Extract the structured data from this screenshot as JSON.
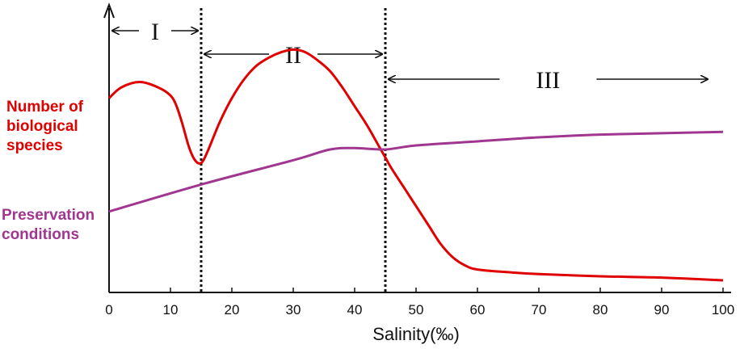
{
  "chart_data": {
    "type": "line",
    "xlabel": "Salinity(‰)",
    "ylabel": "",
    "xlim": [
      0,
      100
    ],
    "x_ticks": [
      "0",
      "10",
      "20",
      "30",
      "40",
      "50",
      "60",
      "70",
      "80",
      "90",
      "100"
    ],
    "series": [
      {
        "name": "Number of biological species",
        "label_lines": [
          "Number of",
          "biological",
          "species"
        ],
        "color": "#e00000",
        "points": [
          [
            0,
            0.72
          ],
          [
            2,
            0.76
          ],
          [
            5,
            0.78
          ],
          [
            8,
            0.76
          ],
          [
            10,
            0.73
          ],
          [
            11,
            0.69
          ],
          [
            12,
            0.62
          ],
          [
            13,
            0.54
          ],
          [
            14,
            0.49
          ],
          [
            15,
            0.48
          ],
          [
            16,
            0.52
          ],
          [
            18,
            0.63
          ],
          [
            20,
            0.72
          ],
          [
            22,
            0.79
          ],
          [
            24,
            0.84
          ],
          [
            26,
            0.87
          ],
          [
            28,
            0.89
          ],
          [
            30,
            0.9
          ],
          [
            32,
            0.89
          ],
          [
            34,
            0.86
          ],
          [
            36,
            0.82
          ],
          [
            38,
            0.76
          ],
          [
            40,
            0.69
          ],
          [
            42,
            0.62
          ],
          [
            44,
            0.54
          ],
          [
            45,
            0.5
          ],
          [
            46,
            0.46
          ],
          [
            48,
            0.39
          ],
          [
            50,
            0.32
          ],
          [
            52,
            0.25
          ],
          [
            54,
            0.18
          ],
          [
            56,
            0.13
          ],
          [
            58,
            0.1
          ],
          [
            60,
            0.085
          ],
          [
            65,
            0.075
          ],
          [
            70,
            0.068
          ],
          [
            80,
            0.06
          ],
          [
            90,
            0.055
          ],
          [
            100,
            0.045
          ]
        ]
      },
      {
        "name": "Preservation conditions",
        "label_lines": [
          "Preservation",
          "conditions"
        ],
        "color": "#a0368f",
        "points": [
          [
            0,
            0.3
          ],
          [
            15,
            0.4
          ],
          [
            30,
            0.49
          ],
          [
            36,
            0.53
          ],
          [
            40,
            0.535
          ],
          [
            45,
            0.53
          ],
          [
            50,
            0.545
          ],
          [
            60,
            0.56
          ],
          [
            70,
            0.575
          ],
          [
            80,
            0.585
          ],
          [
            90,
            0.59
          ],
          [
            100,
            0.595
          ]
        ]
      }
    ],
    "boundaries": [
      15,
      45
    ],
    "zones": [
      {
        "label": "I",
        "from": 0,
        "to": 15
      },
      {
        "label": "II",
        "from": 15,
        "to": 45
      },
      {
        "label": "III",
        "from": 45,
        "to": 98
      }
    ],
    "grid": false
  }
}
